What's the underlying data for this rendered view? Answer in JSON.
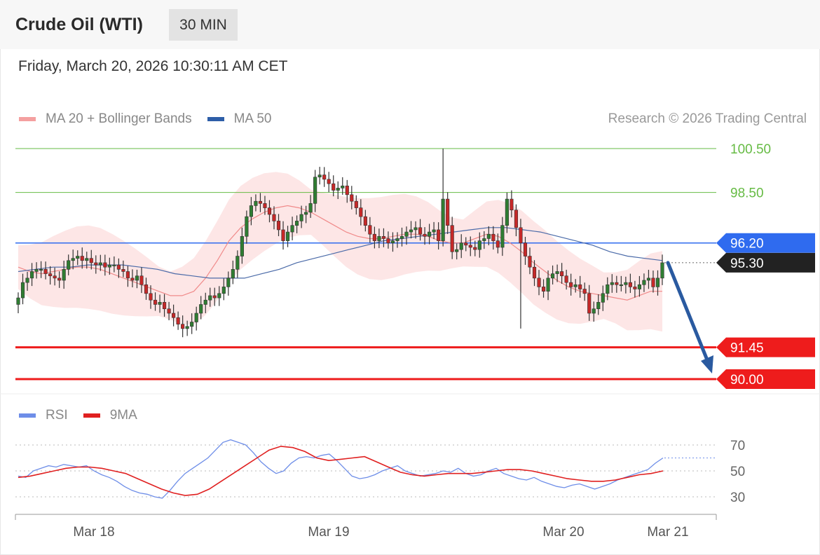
{
  "header": {
    "title": "Crude Oil (WTI)",
    "interval": "30 MIN"
  },
  "datetime": "Friday, March 20, 2026 10:30:11 AM CET",
  "legend": {
    "bands_label": "MA 20 + Bollinger Bands",
    "bands_color": "#f4a0a0",
    "ma50_label": "MA 50",
    "ma50_color": "#2e5ea8"
  },
  "copyright": "Research © 2026 Trading Central",
  "rsi_legend": {
    "rsi_label": "RSI",
    "rsi_color": "#6e8ee8",
    "ma9_label": "9MA",
    "ma9_color": "#e02020"
  },
  "chart_data": {
    "type": "candlestick",
    "y_range": [
      89.0,
      101.5
    ],
    "x_ticks": [
      "Mar 18",
      "Mar 19",
      "Mar 20",
      "Mar 21"
    ],
    "levels": [
      {
        "label": "100.50",
        "value": 100.5,
        "kind": "resistance",
        "color": "#66bb44"
      },
      {
        "label": "98.50",
        "value": 98.5,
        "kind": "resistance",
        "color": "#66bb44"
      },
      {
        "label": "96.20",
        "value": 96.2,
        "kind": "pivot",
        "color": "#2f6bef"
      },
      {
        "label": "95.30",
        "value": 95.3,
        "kind": "last_price",
        "color": "#222222"
      },
      {
        "label": "91.45",
        "value": 91.45,
        "kind": "support",
        "color": "#ee1c1c"
      },
      {
        "label": "90.00",
        "value": 90.0,
        "kind": "support",
        "color": "#ee1c1c"
      }
    ],
    "forecast_arrow": {
      "from": 95.3,
      "to": 90.0,
      "color": "#2a5aa0"
    },
    "close_prices": [
      93.7,
      94.4,
      94.6,
      94.9,
      95.0,
      95.0,
      94.8,
      94.7,
      94.6,
      94.5,
      95.0,
      95.4,
      95.5,
      95.6,
      95.4,
      95.5,
      95.3,
      95.2,
      95.3,
      95.1,
      95.2,
      95.2,
      95.0,
      94.9,
      94.6,
      94.5,
      94.7,
      94.3,
      93.9,
      93.6,
      93.4,
      93.5,
      93.2,
      93.0,
      92.8,
      92.5,
      92.3,
      92.4,
      92.6,
      93.0,
      93.4,
      93.6,
      93.8,
      93.7,
      93.9,
      94.2,
      94.6,
      95.0,
      95.6,
      96.5,
      97.4,
      97.9,
      98.1,
      98.0,
      97.8,
      97.5,
      97.2,
      96.8,
      96.3,
      96.7,
      97.0,
      97.2,
      97.5,
      97.6,
      98.0,
      99.2,
      99.3,
      99.1,
      98.9,
      98.6,
      98.7,
      98.8,
      98.4,
      98.1,
      97.8,
      97.4,
      97.0,
      96.6,
      96.3,
      96.5,
      96.4,
      96.2,
      96.3,
      96.4,
      96.5,
      96.7,
      96.8,
      96.9,
      96.6,
      96.5,
      96.7,
      96.8,
      96.3,
      98.2,
      97.0,
      95.8,
      95.9,
      96.2,
      96.1,
      96.0,
      95.9,
      96.3,
      96.4,
      96.6,
      96.3,
      96.0,
      97.0,
      98.2,
      97.7,
      96.9,
      96.2,
      95.6,
      95.1,
      94.6,
      94.2,
      94.0,
      94.6,
      94.8,
      94.9,
      94.7,
      94.4,
      94.2,
      94.3,
      94.1,
      93.9,
      93.0,
      93.2,
      93.5,
      93.9,
      94.3,
      94.4,
      94.3,
      94.3,
      94.4,
      94.2,
      94.1,
      94.3,
      94.5,
      94.6,
      94.2,
      94.6,
      95.3
    ],
    "series": [
      {
        "name": "MA 20",
        "values": [
          95.1,
          94.9,
          94.8,
          94.9,
          95.0,
          95.1,
          95.1,
          95.0,
          94.8,
          94.6,
          94.4,
          94.2,
          94.0,
          93.8,
          93.8,
          94.0,
          94.6,
          95.4,
          96.3,
          96.9,
          97.3,
          97.6,
          97.8,
          97.9,
          97.8,
          97.6,
          97.3,
          97.0,
          96.7,
          96.5,
          96.4,
          96.4,
          96.5,
          96.6,
          96.6,
          96.5,
          96.3,
          96.2,
          96.2,
          96.4,
          96.6,
          96.5,
          96.2,
          95.8,
          95.3,
          94.9,
          94.5,
          94.2,
          94.0,
          93.9,
          93.8,
          93.7,
          93.6,
          93.8,
          94.0,
          94.0
        ]
      },
      {
        "name": "MA 50",
        "values": [
          94.9,
          95.0,
          95.1,
          95.1,
          95.2,
          95.2,
          95.2,
          95.1,
          95.0,
          94.8,
          94.7,
          94.6,
          94.6,
          94.6,
          94.8,
          95.0,
          95.3,
          95.5,
          95.7,
          95.9,
          96.1,
          96.3,
          96.4,
          96.5,
          96.6,
          96.7,
          96.8,
          96.9,
          96.9,
          96.8,
          96.7,
          96.5,
          96.3,
          96.1,
          95.8,
          95.6,
          95.5,
          95.4
        ]
      }
    ],
    "rsi": {
      "ticks": [
        "70",
        "50",
        "30"
      ],
      "y_range": [
        20,
        80
      ],
      "rsi_values": [
        46,
        45,
        50,
        52,
        54,
        53,
        55,
        54,
        53,
        54,
        50,
        47,
        45,
        42,
        38,
        35,
        33,
        32,
        30,
        29,
        35,
        42,
        48,
        52,
        56,
        60,
        66,
        72,
        74,
        72,
        70,
        64,
        57,
        52,
        48,
        50,
        56,
        60,
        61,
        60,
        62,
        63,
        58,
        52,
        46,
        44,
        45,
        47,
        50,
        52,
        54,
        50,
        48,
        46,
        47,
        48,
        50,
        49,
        52,
        48,
        46,
        47,
        50,
        52,
        48,
        46,
        44,
        43,
        45,
        42,
        40,
        38,
        37,
        39,
        40,
        38,
        36,
        38,
        40,
        43,
        45,
        47,
        49,
        51,
        56,
        60
      ],
      "ma9_values": [
        45,
        46,
        48,
        50,
        52,
        53,
        53,
        52,
        50,
        48,
        44,
        40,
        36,
        33,
        31,
        32,
        36,
        42,
        48,
        54,
        60,
        66,
        69,
        68,
        65,
        60,
        58,
        59,
        60,
        61,
        57,
        53,
        49,
        47,
        46,
        47,
        48,
        48,
        48,
        49,
        50,
        51,
        51,
        50,
        48,
        46,
        44,
        43,
        42,
        42,
        43,
        45,
        47,
        48,
        50
      ]
    }
  }
}
